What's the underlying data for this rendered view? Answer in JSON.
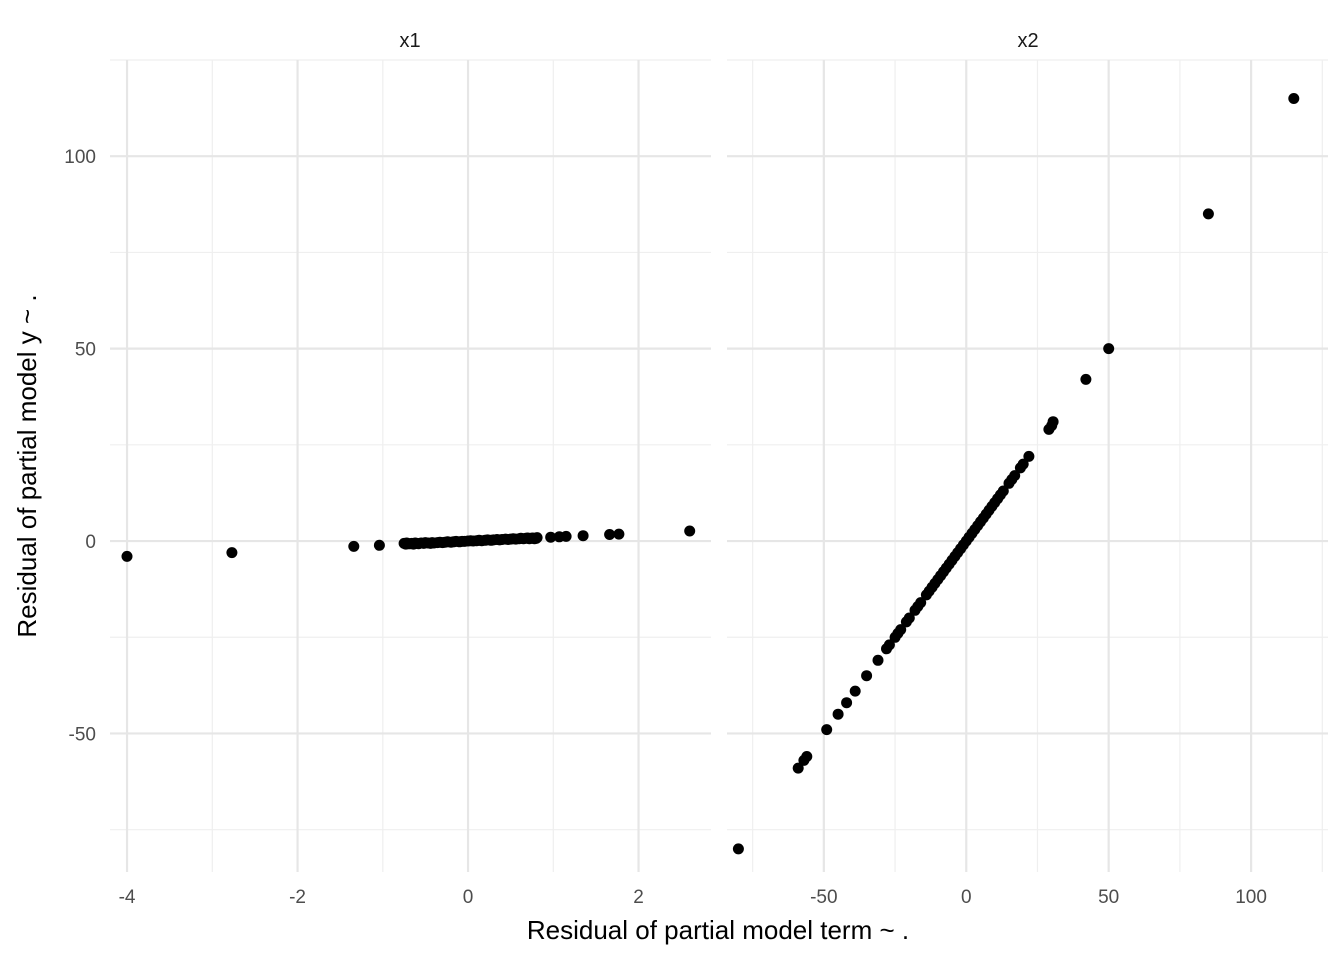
{
  "chart_data": {
    "type": "scatter",
    "xlabel": "Residual of partial model term ~ .",
    "ylabel": "Residual of partial model y ~ .",
    "ylim": [
      -86,
      125
    ],
    "y_ticks": [
      -50,
      0,
      50,
      100
    ],
    "y_tick_labels": [
      "-50",
      "0",
      "50",
      "100"
    ],
    "grid": true,
    "facets": [
      {
        "name": "x1",
        "xlim": [
          -4.2,
          2.85
        ],
        "x_ticks": [
          -4,
          -2,
          0,
          2
        ],
        "x_tick_labels": [
          "-4",
          "-2",
          "0",
          "2"
        ],
        "points": [
          [
            -4.0,
            -4.0
          ],
          [
            -2.77,
            -3.0
          ],
          [
            -1.34,
            -1.4
          ],
          [
            -1.04,
            -1.1
          ],
          [
            -0.75,
            -0.6
          ],
          [
            -0.73,
            -0.8
          ],
          [
            -0.72,
            -0.5
          ],
          [
            -0.7,
            -0.7
          ],
          [
            -0.68,
            -0.7
          ],
          [
            -0.66,
            -0.6
          ],
          [
            -0.64,
            -0.8
          ],
          [
            -0.62,
            -0.5
          ],
          [
            -0.6,
            -0.6
          ],
          [
            -0.58,
            -0.7
          ],
          [
            -0.55,
            -0.5
          ],
          [
            -0.52,
            -0.6
          ],
          [
            -0.5,
            -0.4
          ],
          [
            -0.47,
            -0.5
          ],
          [
            -0.44,
            -0.6
          ],
          [
            -0.42,
            -0.4
          ],
          [
            -0.4,
            -0.5
          ],
          [
            -0.36,
            -0.4
          ],
          [
            -0.33,
            -0.3
          ],
          [
            -0.3,
            -0.4
          ],
          [
            -0.27,
            -0.3
          ],
          [
            -0.24,
            -0.2
          ],
          [
            -0.2,
            -0.3
          ],
          [
            -0.17,
            -0.2
          ],
          [
            -0.14,
            -0.1
          ],
          [
            -0.1,
            -0.2
          ],
          [
            -0.07,
            -0.1
          ],
          [
            -0.04,
            -0.1
          ],
          [
            0.0,
            0.0
          ],
          [
            0.03,
            0.1
          ],
          [
            0.06,
            0.0
          ],
          [
            0.1,
            0.1
          ],
          [
            0.13,
            0.2
          ],
          [
            0.16,
            0.1
          ],
          [
            0.2,
            0.2
          ],
          [
            0.23,
            0.3
          ],
          [
            0.27,
            0.2
          ],
          [
            0.3,
            0.3
          ],
          [
            0.34,
            0.4
          ],
          [
            0.37,
            0.3
          ],
          [
            0.4,
            0.4
          ],
          [
            0.44,
            0.5
          ],
          [
            0.47,
            0.4
          ],
          [
            0.5,
            0.5
          ],
          [
            0.53,
            0.6
          ],
          [
            0.56,
            0.5
          ],
          [
            0.6,
            0.6
          ],
          [
            0.62,
            0.7
          ],
          [
            0.65,
            0.6
          ],
          [
            0.68,
            0.7
          ],
          [
            0.7,
            0.8
          ],
          [
            0.72,
            0.6
          ],
          [
            0.74,
            0.7
          ],
          [
            0.76,
            0.8
          ],
          [
            0.78,
            0.6
          ],
          [
            0.8,
            0.7
          ],
          [
            0.81,
            0.9
          ],
          [
            0.97,
            1.0
          ],
          [
            1.07,
            1.1
          ],
          [
            1.15,
            1.2
          ],
          [
            1.35,
            1.4
          ],
          [
            1.66,
            1.7
          ],
          [
            1.77,
            1.8
          ],
          [
            2.6,
            2.6
          ]
        ]
      },
      {
        "name": "x2",
        "xlim": [
          -84,
          127
        ],
        "x_ticks": [
          -50,
          0,
          50,
          100
        ],
        "x_tick_labels": [
          "-50",
          "0",
          "50",
          "100"
        ],
        "points": [
          [
            -80,
            -80
          ],
          [
            -59,
            -59
          ],
          [
            -57,
            -57
          ],
          [
            -56,
            -56
          ],
          [
            -49,
            -49
          ],
          [
            -45,
            -45
          ],
          [
            -42,
            -42
          ],
          [
            -39,
            -39
          ],
          [
            -35,
            -35
          ],
          [
            -31,
            -31
          ],
          [
            -28,
            -28
          ],
          [
            -27,
            -27
          ],
          [
            -25,
            -25
          ],
          [
            -24,
            -24
          ],
          [
            -23,
            -23
          ],
          [
            -21,
            -21
          ],
          [
            -20,
            -20
          ],
          [
            -18,
            -18
          ],
          [
            -17,
            -17
          ],
          [
            -16,
            -16
          ],
          [
            -14,
            -14
          ],
          [
            -13,
            -13
          ],
          [
            -12,
            -12
          ],
          [
            -11,
            -11
          ],
          [
            -10,
            -10
          ],
          [
            -9,
            -9
          ],
          [
            -8,
            -8
          ],
          [
            -7,
            -7
          ],
          [
            -6,
            -6
          ],
          [
            -5,
            -5
          ],
          [
            -4,
            -4
          ],
          [
            -3,
            -3
          ],
          [
            -2,
            -2
          ],
          [
            -1,
            -1
          ],
          [
            0,
            0
          ],
          [
            1,
            1
          ],
          [
            2,
            2
          ],
          [
            3,
            3
          ],
          [
            4,
            4
          ],
          [
            5,
            5
          ],
          [
            6,
            6
          ],
          [
            7,
            7
          ],
          [
            8,
            8
          ],
          [
            9,
            9
          ],
          [
            10,
            10
          ],
          [
            11,
            11
          ],
          [
            12,
            12
          ],
          [
            13,
            13
          ],
          [
            15,
            15
          ],
          [
            16,
            16
          ],
          [
            17,
            17
          ],
          [
            19,
            19
          ],
          [
            20,
            20
          ],
          [
            22,
            22
          ],
          [
            29,
            29
          ],
          [
            30,
            30
          ],
          [
            30.5,
            31
          ],
          [
            42,
            42
          ],
          [
            50,
            50
          ],
          [
            85,
            85
          ],
          [
            115,
            115
          ]
        ]
      }
    ]
  }
}
